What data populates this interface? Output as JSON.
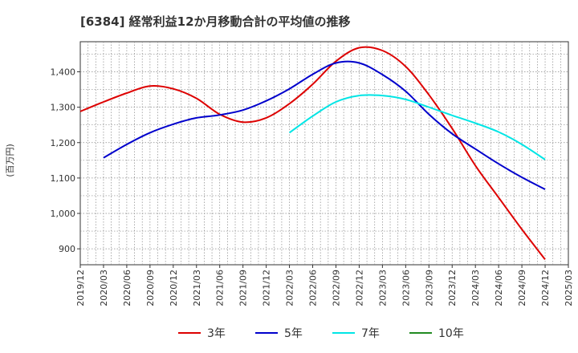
{
  "chart_data": {
    "type": "line",
    "title": "[6384]  経常利益12か月移動合計の平均値の推移",
    "ylabel": "(百万円)",
    "xlabel": "",
    "ylim": [
      855,
      1485
    ],
    "yticks": [
      900,
      1000,
      1100,
      1200,
      1300,
      1400
    ],
    "ytick_labels": [
      "900",
      "1,000",
      "1,100",
      "1,200",
      "1,300",
      "1,400"
    ],
    "xticks": [
      "2019/12",
      "2020/03",
      "2020/06",
      "2020/09",
      "2020/12",
      "2021/03",
      "2021/06",
      "2021/09",
      "2021/12",
      "2022/03",
      "2022/06",
      "2022/09",
      "2022/12",
      "2023/03",
      "2023/06",
      "2023/09",
      "2023/12",
      "2024/03",
      "2024/06",
      "2024/09",
      "2024/12",
      "2025/03"
    ],
    "grid": true,
    "legend_position": "bottom",
    "series": [
      {
        "name": "3年",
        "color": "#dd0000",
        "points": [
          [
            "2019/12",
            1288
          ],
          [
            "2020/03",
            1315
          ],
          [
            "2020/06",
            1340
          ],
          [
            "2020/09",
            1360
          ],
          [
            "2020/12",
            1352
          ],
          [
            "2021/03",
            1325
          ],
          [
            "2021/06",
            1280
          ],
          [
            "2021/09",
            1258
          ],
          [
            "2021/12",
            1270
          ],
          [
            "2022/03",
            1310
          ],
          [
            "2022/06",
            1365
          ],
          [
            "2022/09",
            1430
          ],
          [
            "2022/12",
            1468
          ],
          [
            "2023/03",
            1460
          ],
          [
            "2023/06",
            1415
          ],
          [
            "2023/09",
            1335
          ],
          [
            "2023/12",
            1240
          ],
          [
            "2024/03",
            1135
          ],
          [
            "2024/06",
            1045
          ],
          [
            "2024/09",
            955
          ],
          [
            "2024/12",
            870
          ]
        ]
      },
      {
        "name": "5年",
        "color": "#0000cc",
        "points": [
          [
            "2020/03",
            1157
          ],
          [
            "2020/06",
            1195
          ],
          [
            "2020/09",
            1228
          ],
          [
            "2020/12",
            1252
          ],
          [
            "2021/03",
            1270
          ],
          [
            "2021/06",
            1278
          ],
          [
            "2021/09",
            1292
          ],
          [
            "2021/12",
            1318
          ],
          [
            "2022/03",
            1352
          ],
          [
            "2022/06",
            1393
          ],
          [
            "2022/09",
            1425
          ],
          [
            "2022/12",
            1425
          ],
          [
            "2023/03",
            1392
          ],
          [
            "2023/06",
            1345
          ],
          [
            "2023/09",
            1280
          ],
          [
            "2023/12",
            1225
          ],
          [
            "2024/03",
            1182
          ],
          [
            "2024/06",
            1140
          ],
          [
            "2024/09",
            1102
          ],
          [
            "2024/12",
            1068
          ]
        ]
      },
      {
        "name": "7年",
        "color": "#00e5e5",
        "points": [
          [
            "2022/03",
            1228
          ],
          [
            "2022/06",
            1275
          ],
          [
            "2022/09",
            1315
          ],
          [
            "2022/12",
            1333
          ],
          [
            "2023/03",
            1333
          ],
          [
            "2023/06",
            1322
          ],
          [
            "2023/09",
            1300
          ],
          [
            "2023/12",
            1277
          ],
          [
            "2024/03",
            1255
          ],
          [
            "2024/06",
            1230
          ],
          [
            "2024/09",
            1195
          ],
          [
            "2024/12",
            1152
          ]
        ]
      },
      {
        "name": "10年",
        "color": "#228b22",
        "points": []
      }
    ]
  }
}
